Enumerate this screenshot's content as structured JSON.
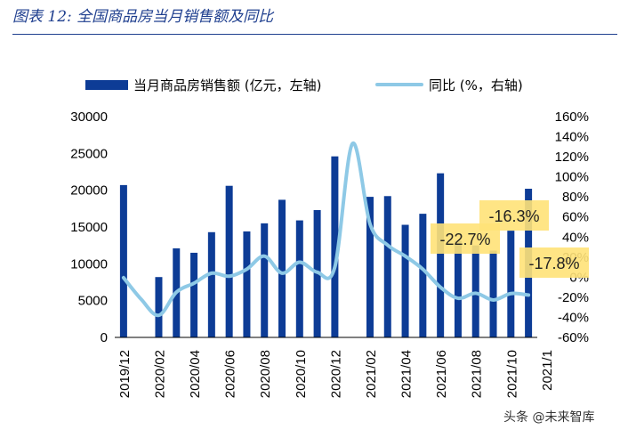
{
  "figure": {
    "title": "图表 12:  全国商品房当月销售额及同比"
  },
  "chart_data": {
    "type": "bar+line",
    "categories": [
      "2019/12",
      "2020/01",
      "2020/02",
      "2020/03",
      "2020/04",
      "2020/05",
      "2020/06",
      "2020/07",
      "2020/08",
      "2020/09",
      "2020/10",
      "2020/11",
      "2020/12",
      "2021/01",
      "2021/02",
      "2021/03",
      "2021/04",
      "2021/05",
      "2021/06",
      "2021/07",
      "2021/08",
      "2021/09",
      "2021/10",
      "2021/11"
    ],
    "x_tick_labels": [
      "2019/12",
      "2020/02",
      "2020/04",
      "2020/06",
      "2020/08",
      "2020/10",
      "2020/12",
      "2021/02",
      "2021/04",
      "2021/06",
      "2021/08",
      "2021/10",
      "2021/1"
    ],
    "series": [
      {
        "name": "当月商品房销售额 (亿元，左轴)",
        "type": "bar",
        "axis": "left",
        "color": "#0d3c96",
        "values": [
          20700,
          null,
          8200,
          12100,
          11500,
          14300,
          20600,
          14400,
          15500,
          18700,
          15900,
          17300,
          24600,
          null,
          19100,
          19200,
          15300,
          16800,
          22300,
          13100,
          12500,
          11800,
          14500,
          20200
        ]
      },
      {
        "name": "同比 (%，右轴)",
        "type": "line",
        "axis": "right",
        "color": "#8ec9e6",
        "values": [
          -0.5,
          -22,
          -38,
          -15,
          -6,
          4,
          1,
          8,
          21,
          4,
          15,
          5,
          10,
          133,
          53,
          32,
          21,
          8,
          -10,
          -21,
          -16,
          -22.7,
          -16.3,
          -17.8
        ]
      }
    ],
    "left_axis": {
      "min": 0,
      "max": 30000,
      "step": 5000,
      "tick_labels": [
        "0",
        "5000",
        "10000",
        "15000",
        "20000",
        "25000",
        "30000"
      ]
    },
    "right_axis": {
      "min": -60,
      "max": 160,
      "step": 20,
      "tick_labels": [
        "-60%",
        "-40%",
        "-20%",
        "0%",
        "20%",
        "40%",
        "60%",
        "80%",
        "100%",
        "120%",
        "140%",
        "160%"
      ]
    },
    "legend_position": "top",
    "annotations": [
      {
        "label": "-22.7%",
        "value": -22.7,
        "category": "2021/09"
      },
      {
        "label": "-16.3%",
        "value": -16.3,
        "category": "2021/10"
      },
      {
        "label": "-17.8%",
        "value": -17.8,
        "category": "2021/11"
      }
    ],
    "annotation_color": "#ffe278"
  },
  "watermark": {
    "text": "头条 @未来智库"
  }
}
